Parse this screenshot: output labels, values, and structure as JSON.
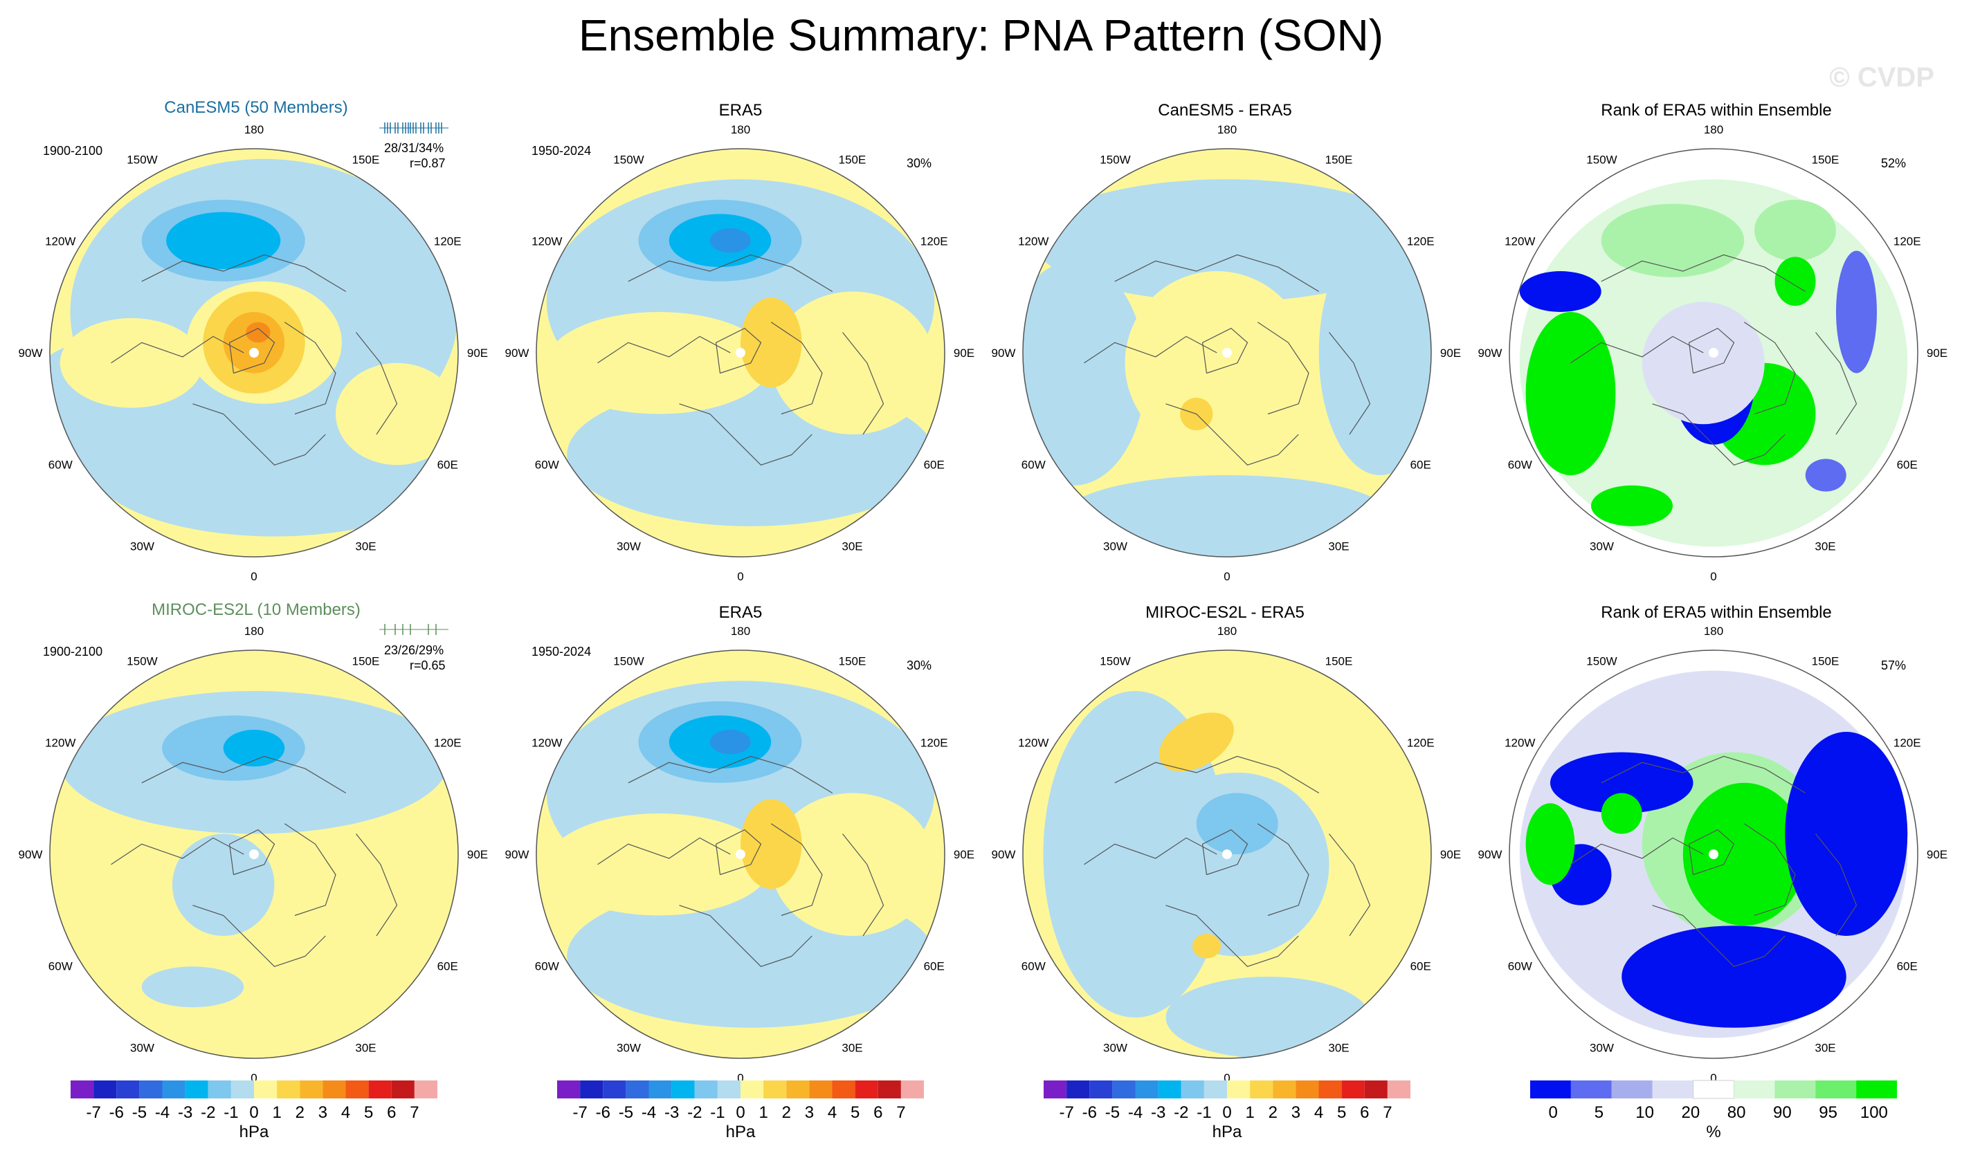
{
  "title": "Ensemble Summary: PNA Pattern (SON)",
  "watermark": "© CVDP",
  "colors": {
    "pos": [
      "#fdf79a",
      "#fbd64a",
      "#f9b52a",
      "#f58c1a",
      "#f25a15",
      "#e5201c",
      "#c41a1c",
      "#a7161c"
    ],
    "neg": [
      "#b3dcef",
      "#7ec7ee",
      "#00b4f0",
      "#2a93e6",
      "#306be0",
      "#2841d4",
      "#1a23c4",
      "#7a1fc8"
    ],
    "rank": [
      "#0010f0",
      "#5d6cf0",
      "#a6aeee",
      "#dde0f5",
      "#ffffff",
      "#ddf8dd",
      "#aaf2aa",
      "#6cef6c",
      "#00ef00"
    ],
    "ocean_bg": "#b3dcef",
    "land_bg": "#fdf79a",
    "can_title": "#1a6f9f",
    "miroc_title": "#5d8f5d"
  },
  "rows": [
    {
      "model_title": "CanESM5 (50 Members)",
      "model_period": "1900-2100",
      "model_stats": "28/31/34%",
      "model_r": "r=0.87",
      "obs_title": "ERA5",
      "obs_period": "1950-2024",
      "obs_pct": "30%",
      "diff_title": "CanESM5 - ERA5",
      "rank_title": "Rank of ERA5 within Ensemble",
      "rank_pct": "52%"
    },
    {
      "model_title": "MIROC-ES2L (10 Members)",
      "model_period": "1900-2100",
      "model_stats": "23/26/29%",
      "model_r": "r=0.65",
      "obs_title": "ERA5",
      "obs_period": "1950-2024",
      "obs_pct": "30%",
      "diff_title": "MIROC-ES2L - ERA5",
      "rank_title": "Rank of ERA5 within Ensemble",
      "rank_pct": "57%"
    }
  ],
  "lon_labels": [
    "180",
    "150E",
    "120E",
    "90E",
    "60E",
    "30E",
    "0",
    "30W",
    "60W",
    "90W",
    "120W",
    "150W"
  ],
  "colorbar": {
    "labels": [
      "-7",
      "-6",
      "-5",
      "-4",
      "-3",
      "-2",
      "-1",
      "0",
      "1",
      "2",
      "3",
      "4",
      "5",
      "6",
      "7"
    ],
    "units": "hPa",
    "colors": [
      "#7a1fc8",
      "#1a23c4",
      "#2841d4",
      "#306be0",
      "#2a93e6",
      "#00b4f0",
      "#7ec7ee",
      "#b3dcef",
      "#fdf79a",
      "#fbd64a",
      "#f9b52a",
      "#f58c1a",
      "#f25a15",
      "#e5201c",
      "#c41a1c",
      "#f4a9a9"
    ]
  },
  "rank_colorbar": {
    "labels": [
      "0",
      "5",
      "10",
      "20",
      "80",
      "90",
      "95",
      "100"
    ],
    "units": "%",
    "colors": [
      "#0010f0",
      "#5d6cf0",
      "#a6aeee",
      "#dde0f5",
      "#ffffff",
      "#ddf8dd",
      "#aaf2aa",
      "#6cef6c",
      "#00ef00"
    ]
  },
  "chart_data": [
    {
      "type": "heatmap",
      "title": "CanESM5 (50 Members)",
      "period": "1900-2100",
      "stats": "28/31/34%",
      "r": "r=0.87",
      "units": "hPa",
      "projection": "north polar stereographic",
      "features": [
        {
          "sign": "negative",
          "level": -4,
          "region": "North Pacific / Aleutian low"
        },
        {
          "sign": "positive",
          "level": 3,
          "region": "Canada / Arctic"
        }
      ]
    },
    {
      "type": "heatmap",
      "title": "ERA5",
      "period": "1950-2024",
      "pct": "30%",
      "units": "hPa",
      "projection": "north polar stereographic",
      "features": [
        {
          "sign": "negative",
          "level": -4,
          "region": "North Pacific / Aleutian low"
        },
        {
          "sign": "positive",
          "level": 2,
          "region": "Western Canada"
        }
      ]
    },
    {
      "type": "heatmap",
      "title": "CanESM5 - ERA5",
      "units": "hPa",
      "projection": "north polar stereographic",
      "features": [
        {
          "sign": "positive",
          "level": 1,
          "region": "North Atlantic"
        }
      ]
    },
    {
      "type": "heatmap",
      "title": "Rank of ERA5 within Ensemble",
      "pct": "52%",
      "units": "%",
      "projection": "north polar stereographic"
    },
    {
      "type": "heatmap",
      "title": "MIROC-ES2L (10 Members)",
      "period": "1900-2100",
      "stats": "23/26/29%",
      "r": "r=0.65",
      "units": "hPa",
      "projection": "north polar stereographic",
      "features": [
        {
          "sign": "negative",
          "level": -3,
          "region": "North Pacific"
        },
        {
          "sign": "negative",
          "level": -1,
          "region": "Arctic / Greenland"
        }
      ]
    },
    {
      "type": "heatmap",
      "title": "ERA5",
      "period": "1950-2024",
      "pct": "30%",
      "units": "hPa",
      "projection": "north polar stereographic",
      "features": [
        {
          "sign": "negative",
          "level": -4,
          "region": "North Pacific / Aleutian low"
        },
        {
          "sign": "positive",
          "level": 2,
          "region": "Western Canada"
        }
      ]
    },
    {
      "type": "heatmap",
      "title": "MIROC-ES2L - ERA5",
      "units": "hPa",
      "projection": "north polar stereographic",
      "features": [
        {
          "sign": "positive",
          "level": 2,
          "region": "Northeast Asia"
        },
        {
          "sign": "negative",
          "level": -2,
          "region": "Arctic / Canada"
        },
        {
          "sign": "positive",
          "level": 1,
          "region": "North Atlantic"
        }
      ]
    },
    {
      "type": "heatmap",
      "title": "Rank of ERA5 within Ensemble",
      "pct": "57%",
      "units": "%",
      "projection": "north polar stereographic"
    }
  ]
}
